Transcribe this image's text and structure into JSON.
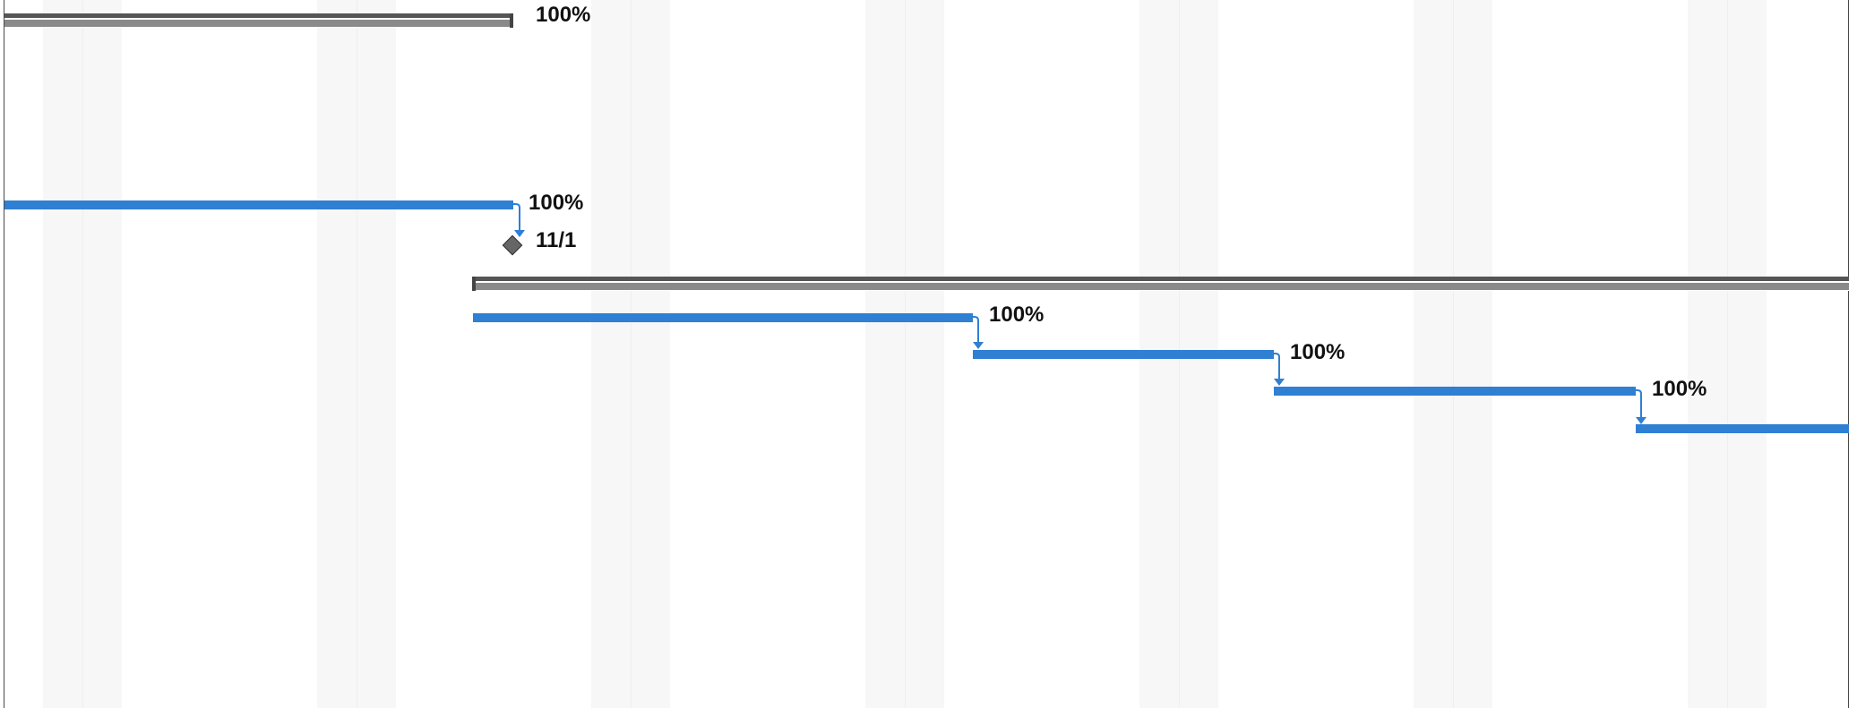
{
  "gantt": {
    "summary_tasks": [
      {
        "percent_complete": "100%"
      },
      {
        "percent_complete": ""
      }
    ],
    "tasks": [
      {
        "percent_complete": "100%"
      },
      {
        "percent_complete": "100%"
      },
      {
        "percent_complete": "100%"
      },
      {
        "percent_complete": "100%"
      },
      {
        "percent_complete": ""
      }
    ],
    "milestone": {
      "date_label": "11/1"
    },
    "colors": {
      "task_bar": "#2f7fd3",
      "summary_top": "#555555",
      "summary_bottom": "#8a8a8a",
      "weekend_shading": "#f7f7f7",
      "connector": "#2f7fd3",
      "milestone": "#666666"
    }
  }
}
